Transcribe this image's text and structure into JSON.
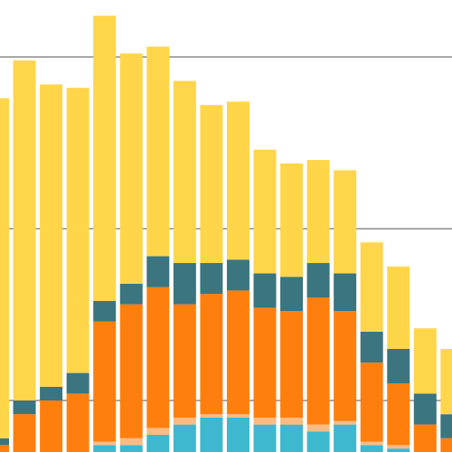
{
  "chart_data": {
    "type": "bar",
    "stacked": true,
    "title": "",
    "xlabel": "",
    "ylabel": "",
    "ylim": [
      0,
      100
    ],
    "gridlines": [
      15,
      65,
      115
    ],
    "grid": true,
    "legend": "none",
    "series_colors": [
      "#3DB8CF",
      "#FDBB84",
      "#FF7F0E",
      "#3A7580",
      "#FFD54A"
    ],
    "bars": [
      {
        "stack": [
          0,
          0,
          2,
          2,
          99
        ]
      },
      {
        "stack": [
          0,
          0,
          11,
          4,
          99
        ]
      },
      {
        "stack": [
          0,
          0,
          15,
          4,
          88
        ]
      },
      {
        "stack": [
          0,
          0,
          17,
          6,
          83
        ]
      },
      {
        "stack": [
          2,
          1,
          35,
          6,
          83
        ]
      },
      {
        "stack": [
          2,
          2,
          39,
          6,
          67
        ]
      },
      {
        "stack": [
          5,
          2,
          41,
          9,
          61
        ]
      },
      {
        "stack": [
          8,
          2,
          33,
          12,
          53
        ]
      },
      {
        "stack": [
          10,
          1,
          35,
          9,
          46
        ]
      },
      {
        "stack": [
          10,
          1,
          36,
          9,
          46
        ]
      },
      {
        "stack": [
          8,
          2,
          32,
          10,
          36
        ]
      },
      {
        "stack": [
          8,
          2,
          31,
          10,
          33
        ]
      },
      {
        "stack": [
          6,
          2,
          37,
          10,
          30
        ]
      },
      {
        "stack": [
          8,
          1,
          32,
          11,
          30
        ]
      },
      {
        "stack": [
          2,
          1,
          23,
          9,
          26
        ]
      },
      {
        "stack": [
          1,
          1,
          18,
          10,
          24
        ]
      },
      {
        "stack": [
          0,
          0,
          8,
          9,
          19
        ]
      },
      {
        "stack": [
          0,
          0,
          4,
          7,
          19
        ]
      }
    ]
  }
}
